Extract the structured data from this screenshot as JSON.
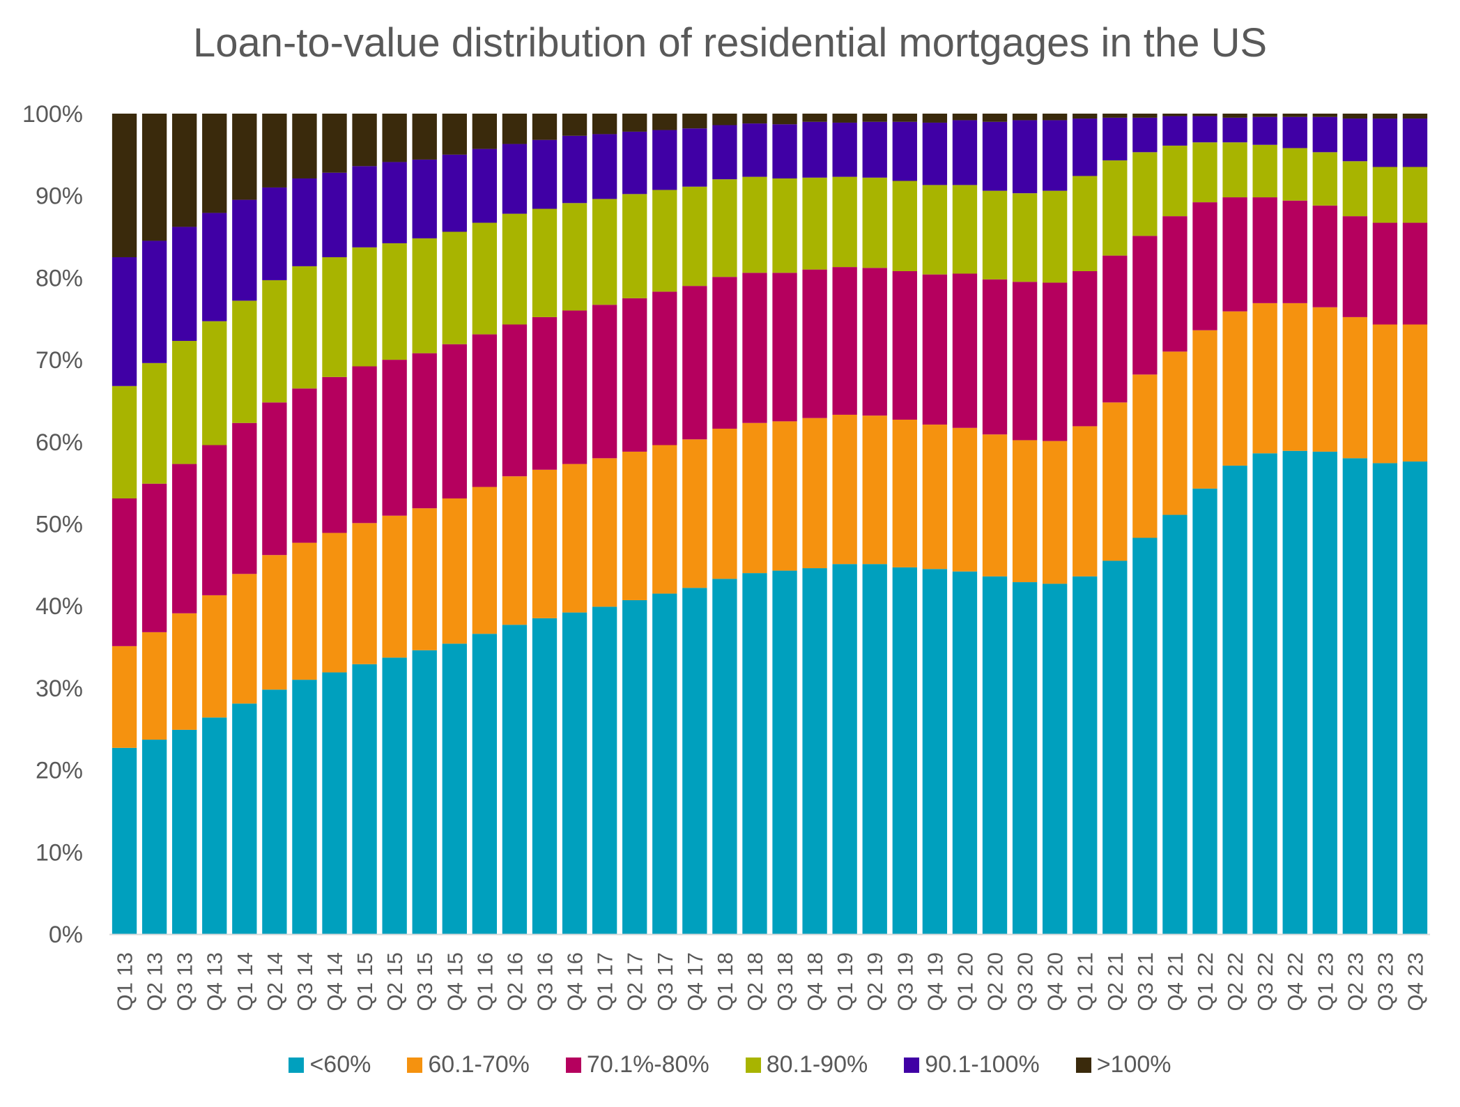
{
  "chart_data": {
    "type": "bar",
    "stacked": true,
    "title": "Loan-to-value distribution of residential mortgages in the US",
    "xlabel": "",
    "ylabel": "",
    "ylim": [
      0,
      100
    ],
    "y_ticks": [
      "0%",
      "10%",
      "20%",
      "30%",
      "40%",
      "50%",
      "60%",
      "70%",
      "80%",
      "90%",
      "100%"
    ],
    "legend_position": "bottom",
    "grid": false,
    "categories": [
      "Q1 13",
      "Q2 13",
      "Q3 13",
      "Q4 13",
      "Q1 14",
      "Q2 14",
      "Q3 14",
      "Q4 14",
      "Q1 15",
      "Q2 15",
      "Q3 15",
      "Q4 15",
      "Q1 16",
      "Q2 16",
      "Q3 16",
      "Q4 16",
      "Q1 17",
      "Q2 17",
      "Q3 17",
      "Q4 17",
      "Q1 18",
      "Q2 18",
      "Q3 18",
      "Q4 18",
      "Q1 19",
      "Q2 19",
      "Q3 19",
      "Q4 19",
      "Q1 20",
      "Q2 20",
      "Q3 20",
      "Q4 20",
      "Q1 21",
      "Q2 21",
      "Q3 21",
      "Q4 21",
      "Q1 22",
      "Q2 22",
      "Q3 22",
      "Q4 22",
      "Q1 23",
      "Q2 23",
      "Q3 23",
      "Q4 23"
    ],
    "series": [
      {
        "name": "<60%",
        "color": "#00A0BE",
        "values": [
          22.7,
          23.7,
          24.9,
          26.4,
          28.1,
          29.8,
          31.0,
          31.9,
          32.9,
          33.7,
          34.6,
          35.4,
          36.6,
          37.7,
          38.5,
          39.2,
          39.9,
          40.7,
          41.5,
          42.2,
          43.3,
          44.0,
          44.3,
          44.6,
          45.1,
          45.1,
          44.7,
          44.5,
          44.2,
          43.6,
          42.9,
          42.7,
          43.6,
          45.5,
          48.3,
          51.1,
          54.3,
          57.1,
          58.6,
          58.9,
          58.8,
          58.0,
          57.4,
          57.6
        ]
      },
      {
        "name": "60.1-70%",
        "color": "#F5920F",
        "values": [
          12.4,
          13.1,
          14.2,
          14.9,
          15.8,
          16.4,
          16.7,
          17.0,
          17.2,
          17.3,
          17.3,
          17.7,
          17.9,
          18.1,
          18.1,
          18.1,
          18.1,
          18.1,
          18.1,
          18.1,
          18.3,
          18.3,
          18.2,
          18.3,
          18.2,
          18.1,
          18.0,
          17.6,
          17.5,
          17.3,
          17.3,
          17.4,
          18.3,
          19.3,
          19.9,
          19.9,
          19.3,
          18.8,
          18.3,
          18.0,
          17.6,
          17.2,
          16.9,
          16.7
        ]
      },
      {
        "name": "70.1%-80%",
        "color": "#B5005E",
        "values": [
          18.0,
          18.1,
          18.2,
          18.3,
          18.4,
          18.6,
          18.8,
          19.0,
          19.1,
          19.0,
          18.9,
          18.8,
          18.6,
          18.5,
          18.6,
          18.7,
          18.7,
          18.7,
          18.7,
          18.7,
          18.5,
          18.3,
          18.1,
          18.1,
          18.0,
          18.0,
          18.1,
          18.3,
          18.8,
          18.9,
          19.3,
          19.3,
          18.9,
          17.9,
          16.9,
          16.5,
          15.6,
          13.9,
          12.9,
          12.5,
          12.4,
          12.3,
          12.4,
          12.4
        ]
      },
      {
        "name": "80.1-90%",
        "color": "#A8B400",
        "values": [
          13.7,
          14.7,
          15.0,
          15.1,
          14.9,
          14.9,
          14.9,
          14.6,
          14.5,
          14.2,
          14.0,
          13.7,
          13.6,
          13.5,
          13.2,
          13.1,
          12.9,
          12.7,
          12.4,
          12.1,
          11.9,
          11.7,
          11.5,
          11.2,
          11.0,
          11.0,
          11.0,
          10.9,
          10.8,
          10.8,
          10.8,
          11.2,
          11.6,
          11.6,
          10.2,
          8.6,
          7.3,
          6.7,
          6.4,
          6.4,
          6.5,
          6.7,
          6.8,
          6.8
        ]
      },
      {
        "name": "90.1-100%",
        "color": "#4000A5",
        "values": [
          15.7,
          14.9,
          13.9,
          13.2,
          12.3,
          11.3,
          10.7,
          10.3,
          9.9,
          9.9,
          9.6,
          9.4,
          9.0,
          8.5,
          8.4,
          8.2,
          7.9,
          7.6,
          7.3,
          7.1,
          6.6,
          6.5,
          6.6,
          6.8,
          6.6,
          6.8,
          7.2,
          7.6,
          7.9,
          8.4,
          8.9,
          8.6,
          7.0,
          5.2,
          4.2,
          3.6,
          3.2,
          3.0,
          3.4,
          3.8,
          4.3,
          5.2,
          5.9,
          5.9
        ]
      },
      {
        "name": ">100%",
        "color": "#3A2A0C",
        "values": [
          17.5,
          15.5,
          13.8,
          12.1,
          10.5,
          9.0,
          7.9,
          7.2,
          6.4,
          5.9,
          5.6,
          5.0,
          4.3,
          3.7,
          3.2,
          2.7,
          2.5,
          2.2,
          2.0,
          1.8,
          1.4,
          1.2,
          1.3,
          1.0,
          1.1,
          1.0,
          1.0,
          1.1,
          0.8,
          1.0,
          0.8,
          0.8,
          0.6,
          0.5,
          0.5,
          0.3,
          0.3,
          0.5,
          0.4,
          0.4,
          0.4,
          0.6,
          0.6,
          0.6
        ]
      }
    ]
  }
}
